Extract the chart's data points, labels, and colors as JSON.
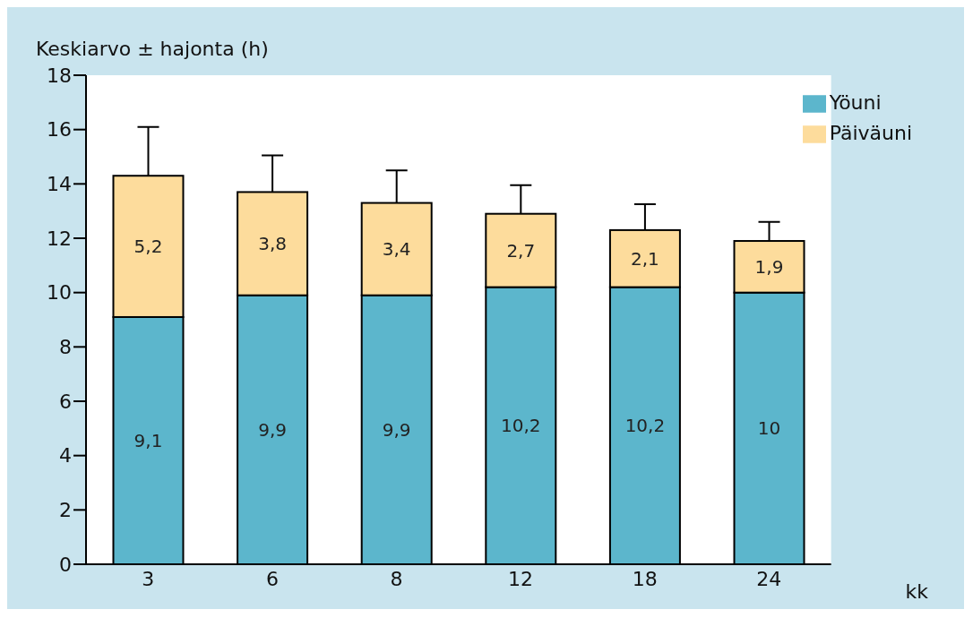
{
  "chart_data": {
    "type": "bar",
    "stacked": true,
    "ylabel": "Keskiarvo ± hajonta (h)",
    "xlabel": "kk",
    "categories": [
      "3",
      "6",
      "8",
      "12",
      "18",
      "24"
    ],
    "series": [
      {
        "name": "Yöuni",
        "color": "#5cb6cc",
        "values": [
          9.1,
          9.9,
          9.9,
          10.2,
          10.2,
          10
        ],
        "value_labels": [
          "9,1",
          "9,9",
          "9,9",
          "10,2",
          "10,2",
          "10"
        ]
      },
      {
        "name": "Päiväuni",
        "color": "#fddc9c",
        "values": [
          5.2,
          3.8,
          3.4,
          2.7,
          2.1,
          1.9
        ],
        "value_labels": [
          "5,2",
          "3,8",
          "3,4",
          "2,7",
          "2,1",
          "1,9"
        ],
        "errors": [
          [
            14.3,
            16.1
          ],
          [
            13.7,
            15.05
          ],
          [
            13.3,
            14.5
          ],
          [
            12.9,
            13.95
          ],
          [
            12.3,
            13.25
          ],
          [
            11.9,
            12.6
          ]
        ]
      }
    ],
    "ylim": [
      0,
      18
    ],
    "yticks": [
      0,
      2,
      4,
      6,
      8,
      10,
      12,
      14,
      16,
      18
    ],
    "legend": "top right"
  }
}
